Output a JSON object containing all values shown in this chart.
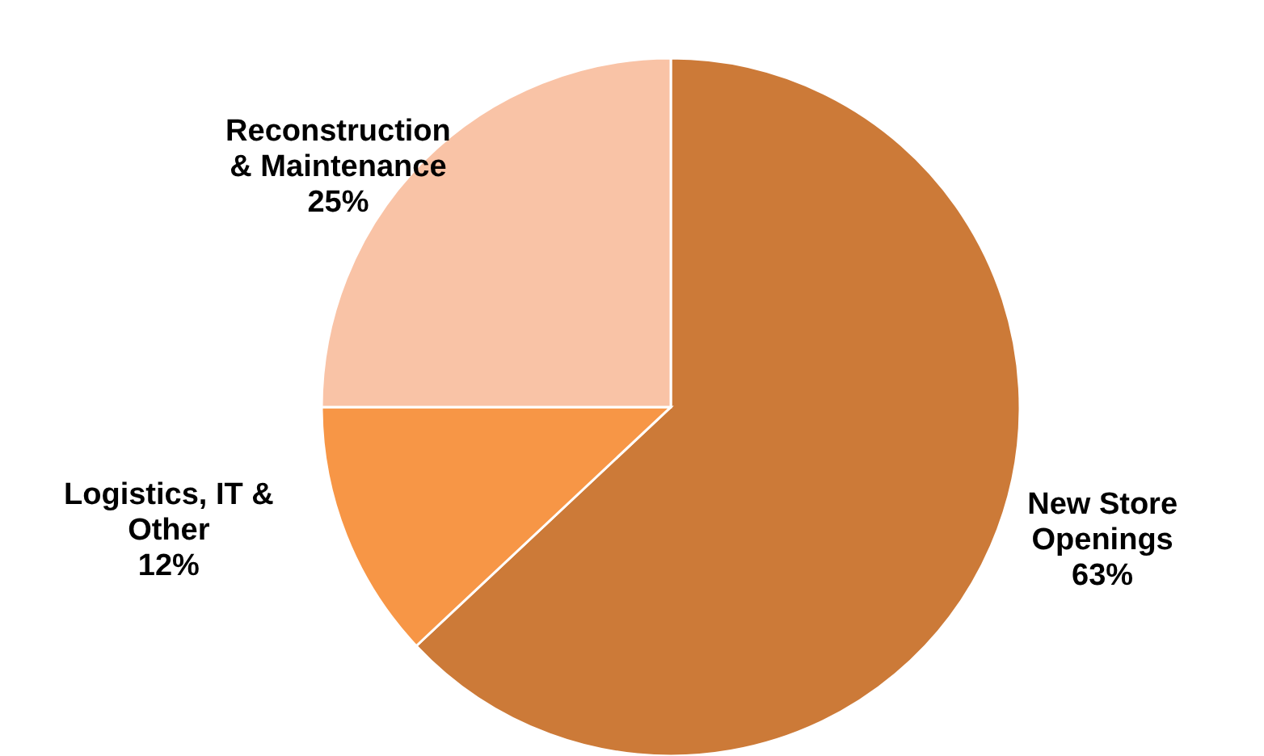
{
  "chart_data": {
    "type": "pie",
    "categories": [
      "New Store Openings",
      "Logistics, IT & Other",
      "Reconstruction & Maintenance"
    ],
    "values": [
      63,
      12,
      25
    ],
    "value_labels": [
      "63%",
      "12%",
      "25%"
    ],
    "colors": [
      "#cc7a38",
      "#f79646",
      "#f9c3a6"
    ]
  }
}
